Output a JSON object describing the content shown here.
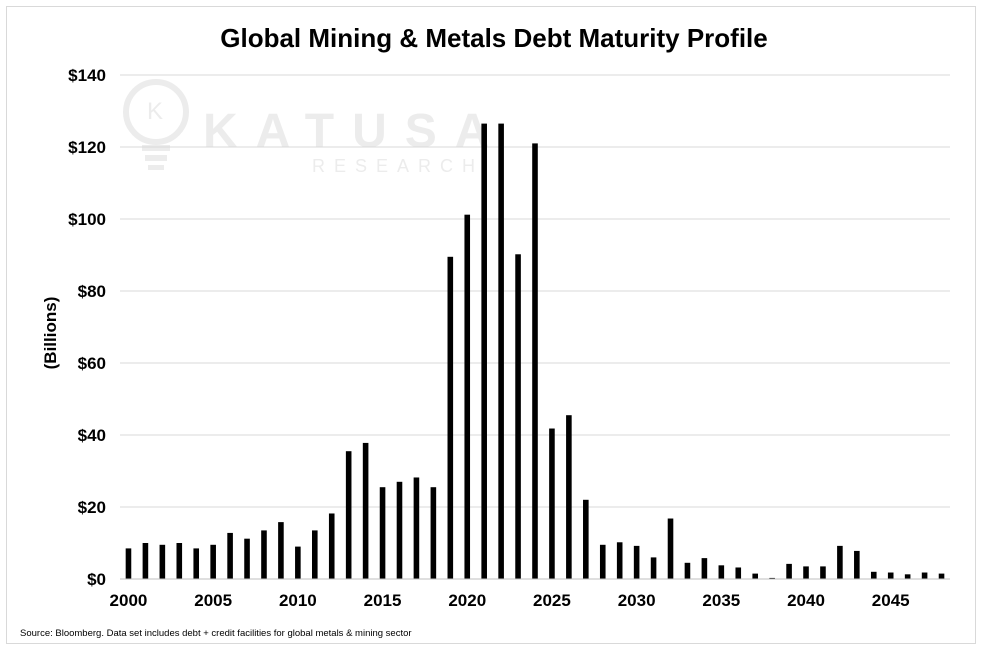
{
  "watermark": {
    "name": "KATUSA",
    "sub": "RESEARCH",
    "glyph": "K"
  },
  "chart_data": {
    "type": "bar",
    "title": "Global Mining & Metals Debt Maturity Profile",
    "ylabel": "(Billions)",
    "xlabel": "",
    "source": "Source: Bloomberg. Data set includes debt + credit facilities for global metals & mining sector",
    "ylim": [
      0,
      140
    ],
    "yticks": [
      0,
      20,
      40,
      60,
      80,
      100,
      120,
      140
    ],
    "ytick_labels": [
      "$0",
      "$20",
      "$40",
      "$60",
      "$80",
      "$100",
      "$120",
      "$140"
    ],
    "xtick_labels": [
      "2000",
      "2005",
      "2010",
      "2015",
      "2020",
      "2025",
      "2030",
      "2035",
      "2040",
      "2045"
    ],
    "grid": true,
    "bar_color": "#000000",
    "grid_color": "#d9d9d9",
    "categories": [
      2000,
      2001,
      2002,
      2003,
      2004,
      2005,
      2006,
      2007,
      2008,
      2009,
      2010,
      2011,
      2012,
      2013,
      2014,
      2015,
      2016,
      2017,
      2018,
      2019,
      2020,
      2021,
      2022,
      2023,
      2024,
      2025,
      2026,
      2027,
      2028,
      2029,
      2030,
      2031,
      2032,
      2033,
      2034,
      2035,
      2036,
      2037,
      2038,
      2039,
      2040,
      2041,
      2042,
      2043,
      2044,
      2045,
      2046,
      2047,
      2048
    ],
    "values": [
      8.5,
      10,
      9.5,
      10,
      8.5,
      9.5,
      12.8,
      11.2,
      13.5,
      15.8,
      9,
      13.5,
      18.2,
      35.5,
      37.8,
      25.5,
      27,
      28.2,
      25.5,
      89.5,
      101.2,
      126.5,
      126.5,
      90.2,
      121,
      41.8,
      45.5,
      22,
      9.5,
      10.2,
      9.2,
      6,
      16.8,
      4.5,
      5.8,
      3.8,
      3.2,
      1.5,
      0.3,
      4.2,
      3.5,
      3.5,
      9.2,
      7.8,
      2,
      1.8,
      1.3,
      1.8,
      1.5
    ]
  }
}
